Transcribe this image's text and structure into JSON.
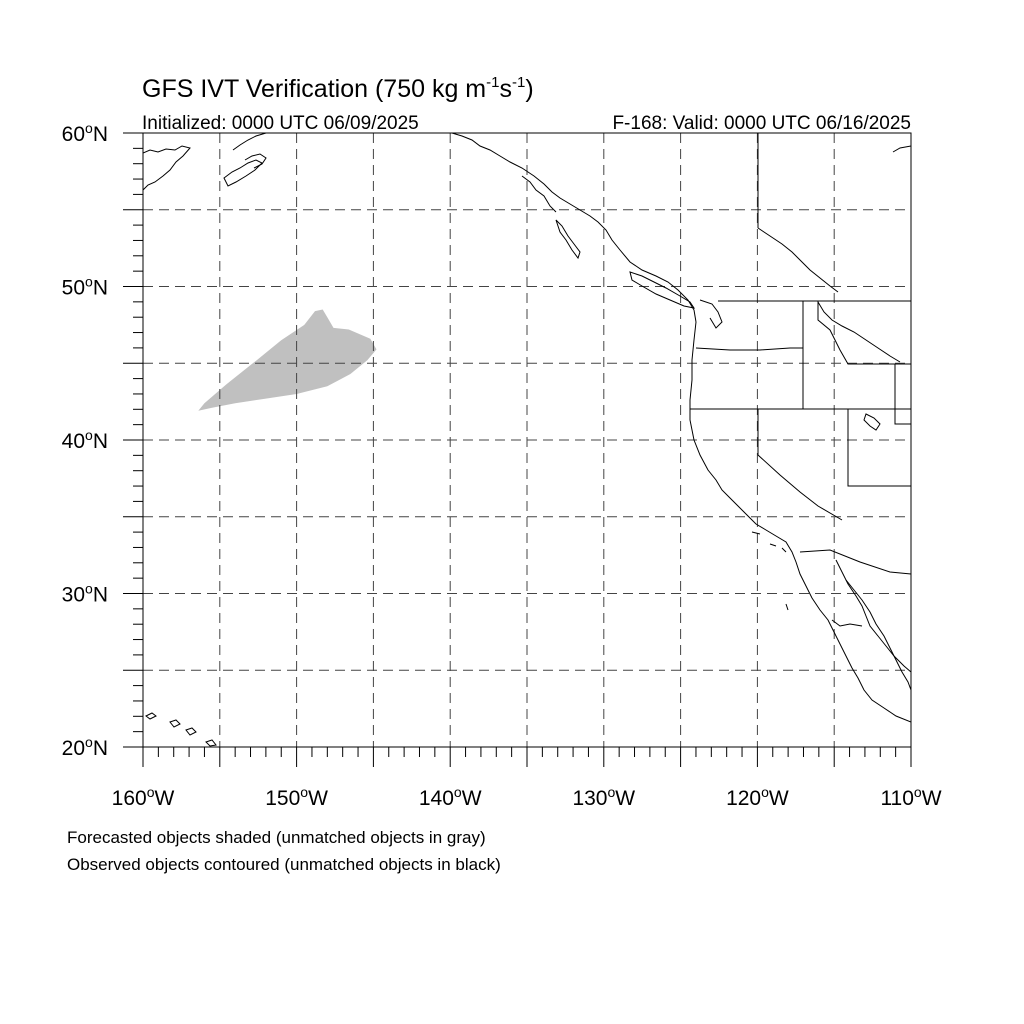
{
  "title": {
    "main": "GFS IVT Verification (750 kg m",
    "exp1": "-1",
    "mid": "s",
    "exp2": "-1",
    "close": ")"
  },
  "subtitle_left": "Initialized: 0000 UTC 06/09/2025",
  "subtitle_right": "F-168: Valid: 0000 UTC 06/16/2025",
  "map": {
    "lon_range": [
      -160,
      -110
    ],
    "lat_range": [
      20,
      60
    ],
    "lon_ticks": [
      {
        "value": -160,
        "num": "160",
        "unit": "o",
        "hemi": "W"
      },
      {
        "value": -150,
        "num": "150",
        "unit": "o",
        "hemi": "W"
      },
      {
        "value": -140,
        "num": "140",
        "unit": "o",
        "hemi": "W"
      },
      {
        "value": -130,
        "num": "130",
        "unit": "o",
        "hemi": "W"
      },
      {
        "value": -120,
        "num": "120",
        "unit": "o",
        "hemi": "W"
      },
      {
        "value": -110,
        "num": "110",
        "unit": "o",
        "hemi": "W"
      }
    ],
    "lat_ticks": [
      {
        "value": 60,
        "num": "60",
        "unit": "o",
        "hemi": "N"
      },
      {
        "value": 50,
        "num": "50",
        "unit": "o",
        "hemi": "N"
      },
      {
        "value": 40,
        "num": "40",
        "unit": "o",
        "hemi": "N"
      },
      {
        "value": 30,
        "num": "30",
        "unit": "o",
        "hemi": "N"
      },
      {
        "value": 20,
        "num": "20",
        "unit": "o",
        "hemi": "N"
      }
    ],
    "grid_lon_step": 5,
    "grid_lat_step": 5,
    "minor_tick_step": 1,
    "forecast_object": {
      "status": "unmatched",
      "color": "#c0c0c0",
      "outline_lonlat": [
        [
          -156.4,
          41.9
        ],
        [
          -155.5,
          42.1
        ],
        [
          -154.0,
          42.4
        ],
        [
          -152.0,
          42.7
        ],
        [
          -150.0,
          43.0
        ],
        [
          -148.0,
          43.5
        ],
        [
          -146.5,
          44.3
        ],
        [
          -145.4,
          45.2
        ],
        [
          -144.8,
          45.9
        ],
        [
          -145.2,
          46.6
        ],
        [
          -146.6,
          47.2
        ],
        [
          -147.6,
          47.3
        ],
        [
          -148.0,
          48.0
        ],
        [
          -148.3,
          48.5
        ],
        [
          -148.8,
          48.4
        ],
        [
          -149.5,
          47.5
        ],
        [
          -151.0,
          46.5
        ],
        [
          -152.6,
          45.2
        ],
        [
          -154.6,
          43.6
        ],
        [
          -156.0,
          42.4
        ]
      ]
    }
  },
  "footnotes": [
    "Forecasted objects shaded (unmatched objects in gray)",
    "Observed objects contoured (unmatched objects in black)"
  ]
}
